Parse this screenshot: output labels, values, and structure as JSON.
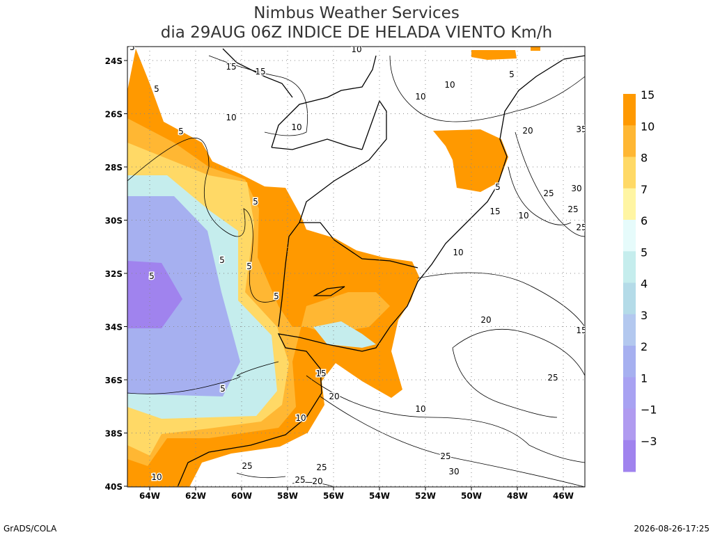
{
  "header": {
    "title": "Nimbus Weather Services",
    "subtitle": "dia 29AUG 06Z INDICE DE HELADA VIENTO Km/h"
  },
  "map": {
    "lat_labels": [
      "24S",
      "26S",
      "28S",
      "30S",
      "32S",
      "34S",
      "36S",
      "38S",
      "40S"
    ],
    "lon_labels": [
      "64W",
      "62W",
      "60W",
      "58W",
      "56W",
      "54W",
      "52W",
      "50W",
      "48W",
      "46W"
    ],
    "contour_labels": [
      "5",
      "15",
      "15",
      "10",
      "10",
      "5",
      "5",
      "10",
      "10",
      "10",
      "5",
      "20",
      "35",
      "25",
      "30",
      "25",
      "25",
      "15",
      "10",
      "10",
      "5",
      "5",
      "5",
      "5",
      "5",
      "5",
      "20",
      "15",
      "25",
      "15",
      "20",
      "10",
      "10",
      "25",
      "30",
      "25",
      "25",
      "20",
      "25",
      "10",
      "5"
    ]
  },
  "colorbar": {
    "labels": [
      "15",
      "10",
      "8",
      "7",
      "6",
      "5",
      "4",
      "3",
      "2",
      "1",
      "−1",
      "−3"
    ],
    "colors": [
      "#ff9900",
      "#ffb733",
      "#ffd966",
      "#fff5a3",
      "#e6fbfb",
      "#c5eded",
      "#b4dbe8",
      "#b3c8ef",
      "#a6b0f0",
      "#a8a2f2",
      "#b09bf0",
      "#a083ee"
    ]
  },
  "footer": {
    "left": "GrADS/COLA",
    "right": "2026-08-26-17:25"
  }
}
